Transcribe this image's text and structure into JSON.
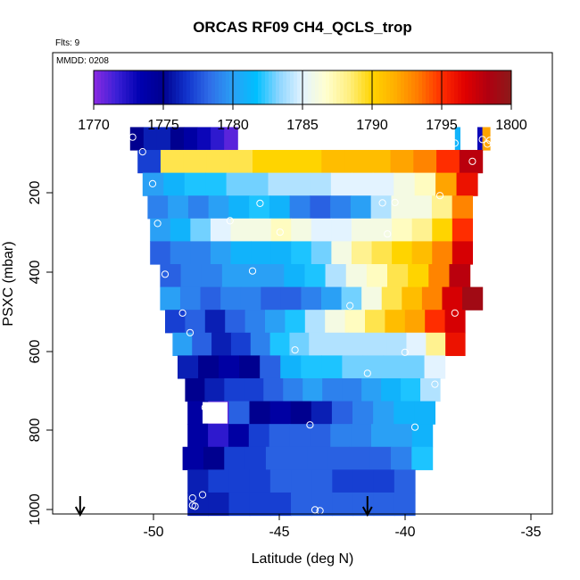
{
  "chart_data": {
    "type": "heatmap",
    "title": "ORCAS RF09 CH4_QCLS_trop",
    "flights_label": "Flts: 9",
    "date_label": "MMDD: 0208",
    "xlabel": "Latitude (deg N)",
    "ylabel": "PSXC (mbar)",
    "xlim": [
      -54.1,
      -34.1
    ],
    "ylim": [
      1010,
      0
    ],
    "x_ticks": [
      "-50",
      "-45",
      "-40",
      "-35"
    ],
    "x_tick_values": [
      -50,
      -45,
      -40,
      -35
    ],
    "y_ticks": [
      "200",
      "400",
      "600",
      "800",
      "1000"
    ],
    "y_tick_values": [
      200,
      400,
      600,
      800,
      1000
    ],
    "colorbar": {
      "ticks": [
        "1770",
        "1775",
        "1780",
        "1785",
        "1790",
        "1795",
        "1800"
      ],
      "tick_values": [
        1770,
        1775,
        1780,
        1785,
        1790,
        1795,
        1800
      ],
      "min": 1770,
      "max": 1800,
      "colors": [
        "#8a2be2",
        "#3a1fd6",
        "#0000b0",
        "#00008f",
        "#1133cc",
        "#2f6de8",
        "#2aa0f5",
        "#00bfff",
        "#8fd6ff",
        "#e3f3ff",
        "#ffffd0",
        "#ffef80",
        "#ffd400",
        "#ffae00",
        "#ff7a00",
        "#ff2d00",
        "#e00000",
        "#b00010",
        "#8b1a1a"
      ]
    },
    "rows": [
      {
        "p": 188,
        "segs": [
          [
            -51.0,
            -46.7,
            [
              1775,
              1776,
              1776,
              1775,
              1774,
              1773,
              1772,
              1771
            ]
          ],
          [
            -38.0,
            -37.8,
            [
              1781
            ]
          ],
          [
            -37.1,
            -36.9,
            [
              1773
            ]
          ],
          [
            -36.9,
            -36.6,
            [
              1792
            ]
          ]
        ]
      },
      {
        "p": 238,
        "segs": [
          [
            -50.7,
            -36.9,
            [
              1777,
              1789,
              1789,
              1789,
              1789,
              1790,
              1790,
              1790,
              1791,
              1791,
              1791,
              1792,
              1793,
              1795,
              1798
            ]
          ]
        ]
      },
      {
        "p": 288,
        "segs": [
          [
            -50.5,
            -37.1,
            [
              1780,
              1781,
              1782,
              1782,
              1783,
              1783,
              1784,
              1784,
              1784,
              1785,
              1785,
              1785,
              1786,
              1787,
              1792,
              1796
            ]
          ]
        ]
      },
      {
        "p": 338,
        "segs": [
          [
            -50.3,
            -37.3,
            [
              1779,
              1780,
              1779,
              1780,
              1781,
              1782,
              1781,
              1779,
              1778,
              1779,
              1780,
              1784,
              1786,
              1786,
              1788,
              1793
            ]
          ]
        ]
      },
      {
        "p": 388,
        "segs": [
          [
            -50.2,
            -37.3,
            [
              1780,
              1781,
              1783,
              1785,
              1786,
              1786,
              1787,
              1786,
              1785,
              1785,
              1786,
              1786,
              1787,
              1788,
              1790,
              1795
            ]
          ]
        ]
      },
      {
        "p": 438,
        "segs": [
          [
            -50.2,
            -37.3,
            [
              1778,
              1779,
              1779,
              1780,
              1781,
              1781,
              1781,
              1782,
              1783,
              1786,
              1788,
              1789,
              1790,
              1791,
              1793,
              1797
            ]
          ]
        ]
      },
      {
        "p": 488,
        "segs": [
          [
            -49.8,
            -37.4,
            [
              1778,
              1779,
              1779,
              1780,
              1780,
              1780,
              1781,
              1782,
              1784,
              1786,
              1787,
              1789,
              1790,
              1793,
              1798
            ]
          ]
        ]
      },
      {
        "p": 538,
        "segs": [
          [
            -49.8,
            -36.9,
            [
              1780,
              1779,
              1778,
              1779,
              1779,
              1778,
              1778,
              1779,
              1780,
              1783,
              1786,
              1789,
              1791,
              1793,
              1797,
              1799
            ]
          ]
        ]
      },
      {
        "p": 588,
        "segs": [
          [
            -49.6,
            -37.6,
            [
              1777,
              1778,
              1776,
              1778,
              1779,
              1780,
              1782,
              1784,
              1786,
              1787,
              1789,
              1791,
              1792,
              1795,
              1797
            ]
          ]
        ]
      },
      {
        "p": 638,
        "segs": [
          [
            -49.3,
            -37.6,
            [
              1780,
              1778,
              1776,
              1777,
              1779,
              1782,
              1783,
              1784,
              1784,
              1784,
              1784,
              1784,
              1785,
              1788,
              1796
            ]
          ]
        ]
      },
      {
        "p": 688,
        "segs": [
          [
            -49.1,
            -38.4,
            [
              1776,
              1775,
              1774,
              1775,
              1778,
              1781,
              1782,
              1782,
              1783,
              1783,
              1783,
              1783,
              1785
            ]
          ]
        ]
      },
      {
        "p": 738,
        "segs": [
          [
            -48.8,
            -38.6,
            [
              1775,
              1776,
              1777,
              1777,
              1778,
              1779,
              1780,
              1779,
              1779,
              1780,
              1781,
              1782,
              1784
            ]
          ]
        ]
      },
      {
        "p": 788,
        "segs": [
          [
            -48.7,
            -38.8,
            [
              1774,
              1771,
              1778,
              1775,
              1774,
              1775,
              1776,
              1778,
              1779,
              1780,
              1781,
              1781
            ]
          ]
        ]
      },
      {
        "p": 838,
        "segs": [
          [
            -48.7,
            -38.9,
            [
              1774,
              1772,
              1774,
              1777,
              1778,
              1778,
              1778,
              1779,
              1779,
              1780,
              1780,
              1781
            ]
          ]
        ]
      },
      {
        "p": 888,
        "segs": [
          [
            -48.9,
            -38.9,
            [
              1774,
              1775,
              1777,
              1777,
              1778,
              1778,
              1778,
              1778,
              1778,
              1778,
              1779,
              1782
            ]
          ]
        ]
      },
      {
        "p": 938,
        "segs": [
          [
            -48.7,
            -39.6,
            [
              1776,
              1777,
              1777,
              1777,
              1778,
              1778,
              1778,
              1777,
              1777,
              1777,
              1778
            ]
          ]
        ]
      },
      {
        "p": 988,
        "segs": [
          [
            -48.7,
            -39.6,
            [
              1776,
              1776,
              1777,
              1777,
              1777,
              1778,
              1778,
              1778,
              1778,
              1778,
              1778
            ]
          ]
        ]
      }
    ],
    "gaps": [
      {
        "x": [
          -48.1,
          -47.1
        ],
        "p": [
          765,
          812
        ]
      }
    ],
    "points": [
      {
        "x": -50.9,
        "p": 185
      },
      {
        "x": -50.5,
        "p": 217
      },
      {
        "x": -50.1,
        "p": 287
      },
      {
        "x": -49.9,
        "p": 374
      },
      {
        "x": -49.6,
        "p": 485
      },
      {
        "x": -48.9,
        "p": 570
      },
      {
        "x": -48.6,
        "p": 613
      },
      {
        "x": -48.1,
        "p": 968
      },
      {
        "x": -48.5,
        "p": 975
      },
      {
        "x": -48.5,
        "p": 991
      },
      {
        "x": -48.4,
        "p": 993
      },
      {
        "x": -48.0,
        "p": 777
      },
      {
        "x": -47.0,
        "p": 368
      },
      {
        "x": -46.1,
        "p": 478
      },
      {
        "x": -45.8,
        "p": 330
      },
      {
        "x": -45.0,
        "p": 393
      },
      {
        "x": -44.4,
        "p": 651
      },
      {
        "x": -43.8,
        "p": 815
      },
      {
        "x": -43.6,
        "p": 1001
      },
      {
        "x": -43.4,
        "p": 1003
      },
      {
        "x": -42.2,
        "p": 554
      },
      {
        "x": -41.5,
        "p": 702
      },
      {
        "x": -40.4,
        "p": 328
      },
      {
        "x": -40.9,
        "p": 329
      },
      {
        "x": -40.7,
        "p": 397
      },
      {
        "x": -40.0,
        "p": 656
      },
      {
        "x": -39.6,
        "p": 820
      },
      {
        "x": -39.3,
        "p": 1002
      },
      {
        "x": -39.2,
        "p": 1002
      },
      {
        "x": -38.8,
        "p": 726
      },
      {
        "x": -38.6,
        "p": 313
      },
      {
        "x": -38.0,
        "p": 198
      },
      {
        "x": -38.0,
        "p": 570
      },
      {
        "x": -37.3,
        "p": 238
      },
      {
        "x": -37.8,
        "p": 911
      },
      {
        "x": -36.9,
        "p": 190
      },
      {
        "x": -36.6,
        "p": 192
      },
      {
        "x": -36.7,
        "p": 200
      }
    ],
    "arrows": [
      {
        "x": -53.0
      },
      {
        "x": -41.5
      }
    ]
  }
}
